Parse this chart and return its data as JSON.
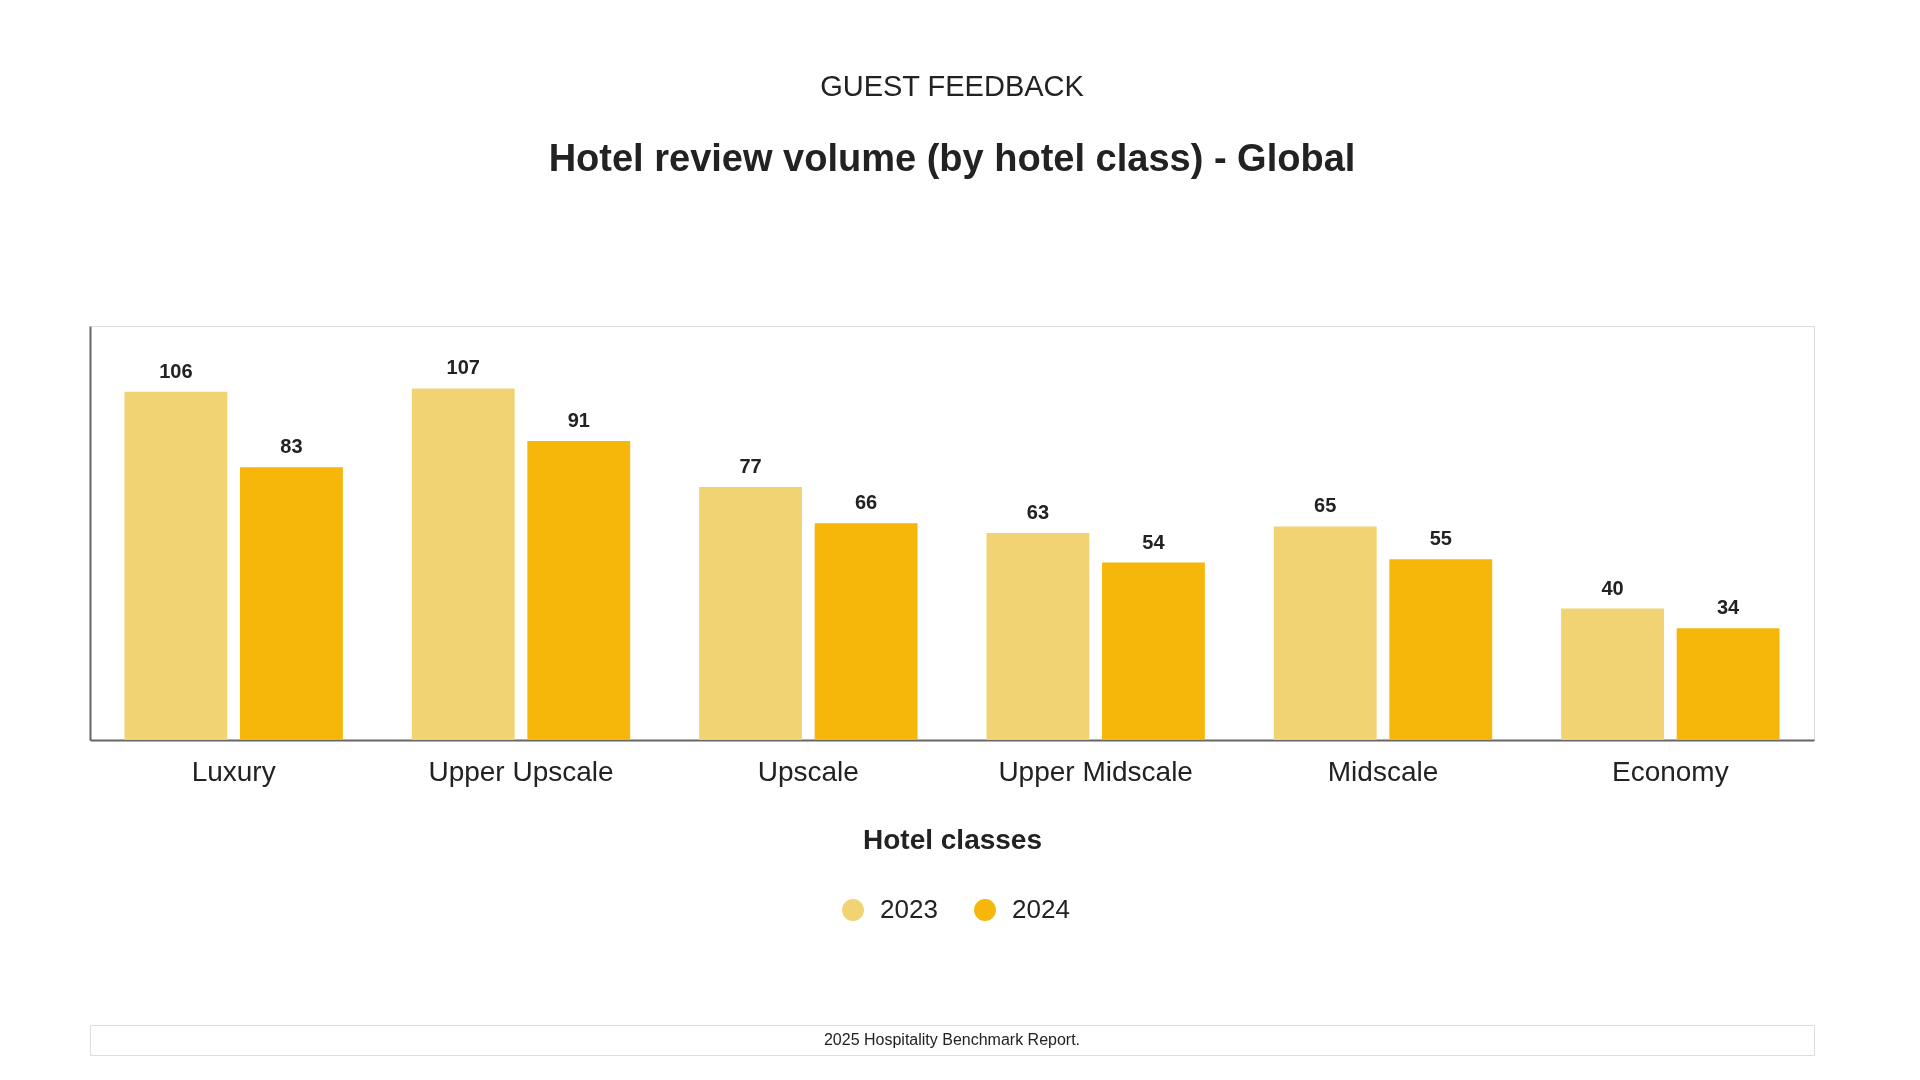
{
  "chart_data": {
    "type": "bar",
    "subtitle": "GUEST FEEDBACK",
    "title": "Hotel review volume (by hotel class) - Global",
    "xlabel": "Hotel classes",
    "categories": [
      "Luxury",
      "Upper Upscale",
      "Upscale",
      "Upper Midscale",
      "Midscale",
      "Economy"
    ],
    "series": [
      {
        "name": "2023",
        "color": "#f2d374",
        "values": [
          106,
          107,
          77,
          63,
          65,
          40
        ]
      },
      {
        "name": "2024",
        "color": "#f6b70a",
        "values": [
          83,
          91,
          66,
          54,
          55,
          34
        ]
      }
    ],
    "ylim": [
      0,
      126
    ],
    "tick_labels": "x",
    "data_labels": true,
    "legend": "bottom",
    "annotations": [
      "2025 Hospitality Benchmark Report."
    ]
  }
}
